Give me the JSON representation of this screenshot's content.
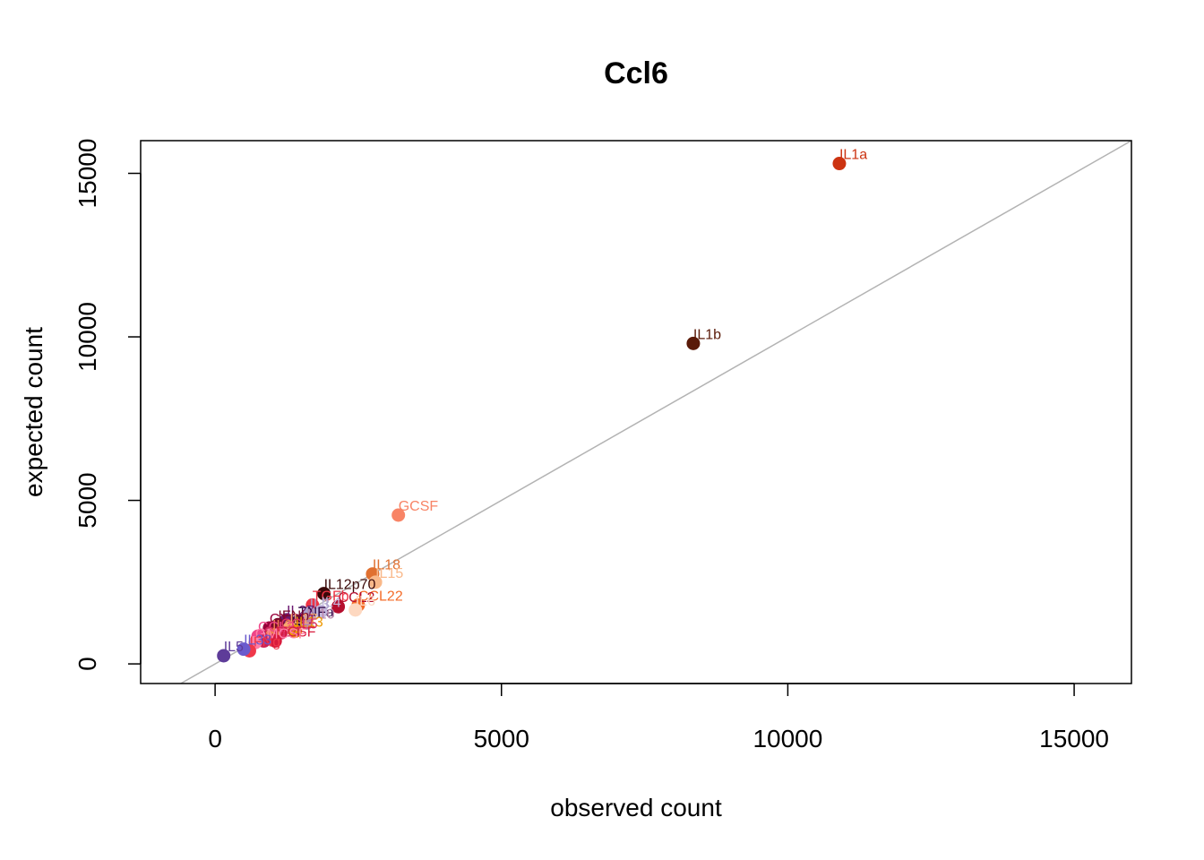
{
  "chart_data": {
    "type": "scatter",
    "title": "Ccl6",
    "xlabel": "observed count",
    "ylabel": "expected count",
    "xlim": [
      -1300,
      16000
    ],
    "ylim": [
      -600,
      16000
    ],
    "x_ticks": [
      0,
      5000,
      10000,
      15000
    ],
    "y_ticks": [
      0,
      5000,
      10000,
      15000
    ],
    "x_tick_labels": [
      "0",
      "5000",
      "10000",
      "15000"
    ],
    "y_tick_labels": [
      "0",
      "5000",
      "10000",
      "15000"
    ],
    "grid": false,
    "legend": "none",
    "reference_line": "y = x",
    "reference_line_color": "#b3b3b3",
    "points": [
      {
        "label": "IL1a",
        "x": 10900,
        "y": 15300,
        "color": "#cc3311"
      },
      {
        "label": "IL1b",
        "x": 8350,
        "y": 9800,
        "color": "#5a1a08"
      },
      {
        "label": "GCSF",
        "x": 3200,
        "y": 4550,
        "color": "#f88466"
      },
      {
        "label": "IL18",
        "x": 2750,
        "y": 2750,
        "color": "#e07030"
      },
      {
        "label": "IL15",
        "x": 2800,
        "y": 2500,
        "color": "#f9b889"
      },
      {
        "label": "IL12p70",
        "x": 1900,
        "y": 2150,
        "color": "#3a0808"
      },
      {
        "label": "CCL22",
        "x": 2500,
        "y": 1800,
        "color": "#f46d2a"
      },
      {
        "label": "CCL2",
        "x": 2150,
        "y": 1750,
        "color": "#b50e2e"
      },
      {
        "label": "TGFb",
        "x": 1700,
        "y": 1800,
        "color": "#ee3344"
      },
      {
        "label": "IL6",
        "x": 2450,
        "y": 1650,
        "color": "#fdd8c0"
      },
      {
        "label": "IL4",
        "x": 1850,
        "y": 1600,
        "color": "#c4b8dd"
      },
      {
        "label": "IL3",
        "x": 1650,
        "y": 1550,
        "color": "#ab9fcc"
      },
      {
        "label": "IL27",
        "x": 1250,
        "y": 1350,
        "color": "#6a1870"
      },
      {
        "label": "TNFa",
        "x": 1450,
        "y": 1300,
        "color": "#300848"
      },
      {
        "label": "IL10",
        "x": 1600,
        "y": 1250,
        "color": "#bb88aa"
      },
      {
        "label": "CXCL1",
        "x": 950,
        "y": 1100,
        "color": "#99003a"
      },
      {
        "label": "IFNb",
        "x": 1100,
        "y": 1200,
        "color": "#7a0a2a"
      },
      {
        "label": "IL17",
        "x": 1300,
        "y": 1100,
        "color": "#f7a870"
      },
      {
        "label": "IL13",
        "x": 1400,
        "y": 1000,
        "color": "#ee9900"
      },
      {
        "label": "CCL5",
        "x": 1150,
        "y": 950,
        "color": "#dd3366"
      },
      {
        "label": "IL2",
        "x": 1000,
        "y": 900,
        "color": "#f08050"
      },
      {
        "label": "CCL3",
        "x": 750,
        "y": 850,
        "color": "#ee4488"
      },
      {
        "label": "CCL4",
        "x": 850,
        "y": 700,
        "color": "#cc2255"
      },
      {
        "label": "MCSF",
        "x": 1050,
        "y": 700,
        "color": "#d81b3c"
      },
      {
        "label": "GMCSF",
        "x": 700,
        "y": 650,
        "color": "#ff7fa8"
      },
      {
        "label": "IFNg",
        "x": 600,
        "y": 400,
        "color": "#f0384a"
      },
      {
        "label": "IL33",
        "x": 500,
        "y": 450,
        "color": "#6a5acd"
      },
      {
        "label": "IL5",
        "x": 150,
        "y": 250,
        "color": "#5e3c99"
      }
    ]
  }
}
